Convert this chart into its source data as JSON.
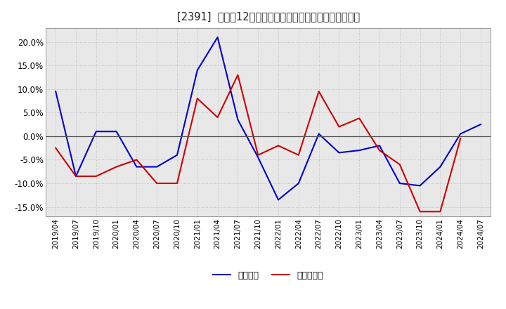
{
  "title": "[2391]  利益だ12か月移動合計の対前年同期増減率の推移",
  "ylim": [
    -0.17,
    0.23
  ],
  "yticks": [
    -0.15,
    -0.1,
    -0.05,
    0.0,
    0.05,
    0.1,
    0.15,
    0.2
  ],
  "background_color": "#ffffff",
  "plot_bg_color": "#e8e8e8",
  "grid_color": "#bbbbbb",
  "x_labels": [
    "2019/04",
    "2019/07",
    "2019/10",
    "2020/01",
    "2020/04",
    "2020/07",
    "2020/10",
    "2021/01",
    "2021/04",
    "2021/07",
    "2021/10",
    "2022/01",
    "2022/04",
    "2022/07",
    "2022/10",
    "2023/01",
    "2023/04",
    "2023/07",
    "2023/10",
    "2024/01",
    "2024/04",
    "2024/07"
  ],
  "blue_line": {
    "label": "経常利益",
    "color": "#0000cc",
    "values": [
      0.095,
      -0.085,
      0.01,
      0.01,
      -0.065,
      -0.065,
      -0.04,
      0.14,
      0.21,
      0.035,
      -0.045,
      -0.135,
      -0.1,
      0.005,
      -0.035,
      -0.03,
      -0.02,
      -0.1,
      -0.105,
      -0.065,
      0.005,
      0.025
    ]
  },
  "red_line": {
    "label": "当期純利益",
    "color": "#cc0000",
    "values": [
      -0.025,
      -0.085,
      -0.085,
      -0.065,
      -0.05,
      -0.1,
      -0.1,
      0.08,
      0.04,
      0.13,
      -0.04,
      -0.02,
      -0.04,
      0.095,
      0.02,
      0.038,
      -0.03,
      -0.06,
      -0.16,
      -0.16,
      -0.005,
      null
    ]
  }
}
